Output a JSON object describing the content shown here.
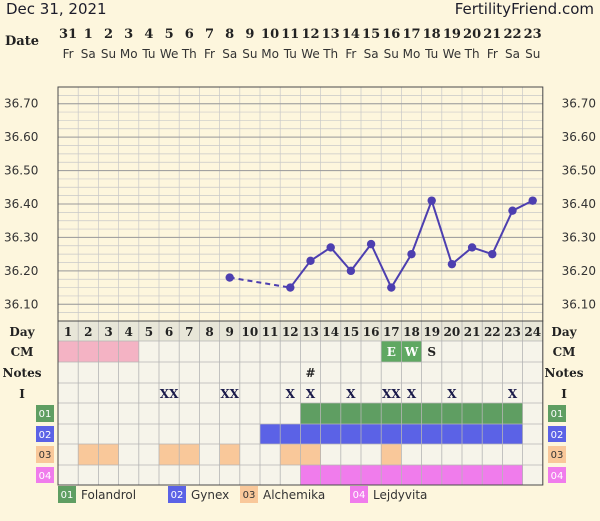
{
  "header": {
    "date": "Dec 31, 2021",
    "brand": "FertilityFriend.com"
  },
  "labels": {
    "date_row": "Date",
    "day_row": "Day",
    "cm_row": "CM",
    "notes_row": "Notes",
    "i_row": "I"
  },
  "dates": [
    "31",
    "1",
    "2",
    "3",
    "4",
    "5",
    "6",
    "7",
    "8",
    "9",
    "10",
    "11",
    "12",
    "13",
    "14",
    "15",
    "16",
    "17",
    "18",
    "19",
    "20",
    "21",
    "22",
    "23"
  ],
  "weekdays": [
    "Fr",
    "Sa",
    "Su",
    "Mo",
    "Tu",
    "We",
    "Th",
    "Fr",
    "Sa",
    "Su",
    "Mo",
    "Tu",
    "We",
    "Th",
    "Fr",
    "Sa",
    "Su",
    "Mo",
    "Tu",
    "We",
    "Th",
    "Fr",
    "Sa",
    "Su"
  ],
  "days": [
    "1",
    "2",
    "3",
    "4",
    "5",
    "6",
    "7",
    "8",
    "9",
    "10",
    "11",
    "12",
    "13",
    "14",
    "15",
    "16",
    "17",
    "18",
    "19",
    "20",
    "21",
    "22",
    "23",
    "24"
  ],
  "cm": [
    {
      "day": 17,
      "label": "E",
      "color": "#5fa862"
    },
    {
      "day": 18,
      "label": "W",
      "color": "#5fa862"
    },
    {
      "day": 19,
      "label": "S",
      "color": null
    }
  ],
  "cm_shaded": {
    "days": [
      1,
      2,
      3,
      4
    ],
    "color": "#f4b3c4"
  },
  "notes": [
    {
      "day": 13,
      "label": "#"
    }
  ],
  "intercourse": [
    {
      "day": 6,
      "label": "XX"
    },
    {
      "day": 9,
      "label": "XX"
    },
    {
      "day": 12,
      "label": "X"
    },
    {
      "day": 13,
      "label": "X"
    },
    {
      "day": 15,
      "label": "X"
    },
    {
      "day": 17,
      "label": "XX"
    },
    {
      "day": 18,
      "label": "X"
    },
    {
      "day": 20,
      "label": "X"
    },
    {
      "day": 23,
      "label": "X"
    }
  ],
  "meds": [
    {
      "code": "01",
      "name": "Folandrol",
      "color": "#5f9e62",
      "days": [
        13,
        14,
        15,
        16,
        17,
        18,
        19,
        20,
        21,
        22,
        23
      ]
    },
    {
      "code": "02",
      "name": "Gynex",
      "color": "#5b62e6",
      "days": [
        11,
        12,
        13,
        14,
        15,
        16,
        17,
        18,
        19,
        20,
        21,
        22,
        23
      ]
    },
    {
      "code": "03",
      "name": "Alchemika",
      "color": "#f9c89a",
      "days": [
        2,
        3,
        6,
        7,
        9,
        12,
        13,
        17
      ]
    },
    {
      "code": "04",
      "name": "Lejdyvita",
      "color": "#f07cec",
      "days": [
        13,
        14,
        15,
        16,
        17,
        18,
        19,
        20,
        21,
        22,
        23
      ]
    }
  ],
  "chart_data": {
    "type": "line",
    "x": [
      9,
      12,
      13,
      14,
      15,
      16,
      17,
      18,
      19,
      20,
      21,
      22,
      23,
      24
    ],
    "y": [
      36.18,
      36.15,
      36.23,
      36.27,
      36.2,
      36.28,
      36.15,
      36.25,
      36.41,
      36.22,
      36.27,
      36.25,
      36.38,
      36.41
    ],
    "dashed_segment": [
      9,
      12
    ],
    "series_color": "#4d3fb0",
    "ylim": [
      36.05,
      36.75
    ],
    "yticks": [
      "36.10",
      "36.20",
      "36.30",
      "36.40",
      "36.50",
      "36.60",
      "36.70"
    ],
    "xlim": [
      1,
      24
    ],
    "grid": true
  }
}
